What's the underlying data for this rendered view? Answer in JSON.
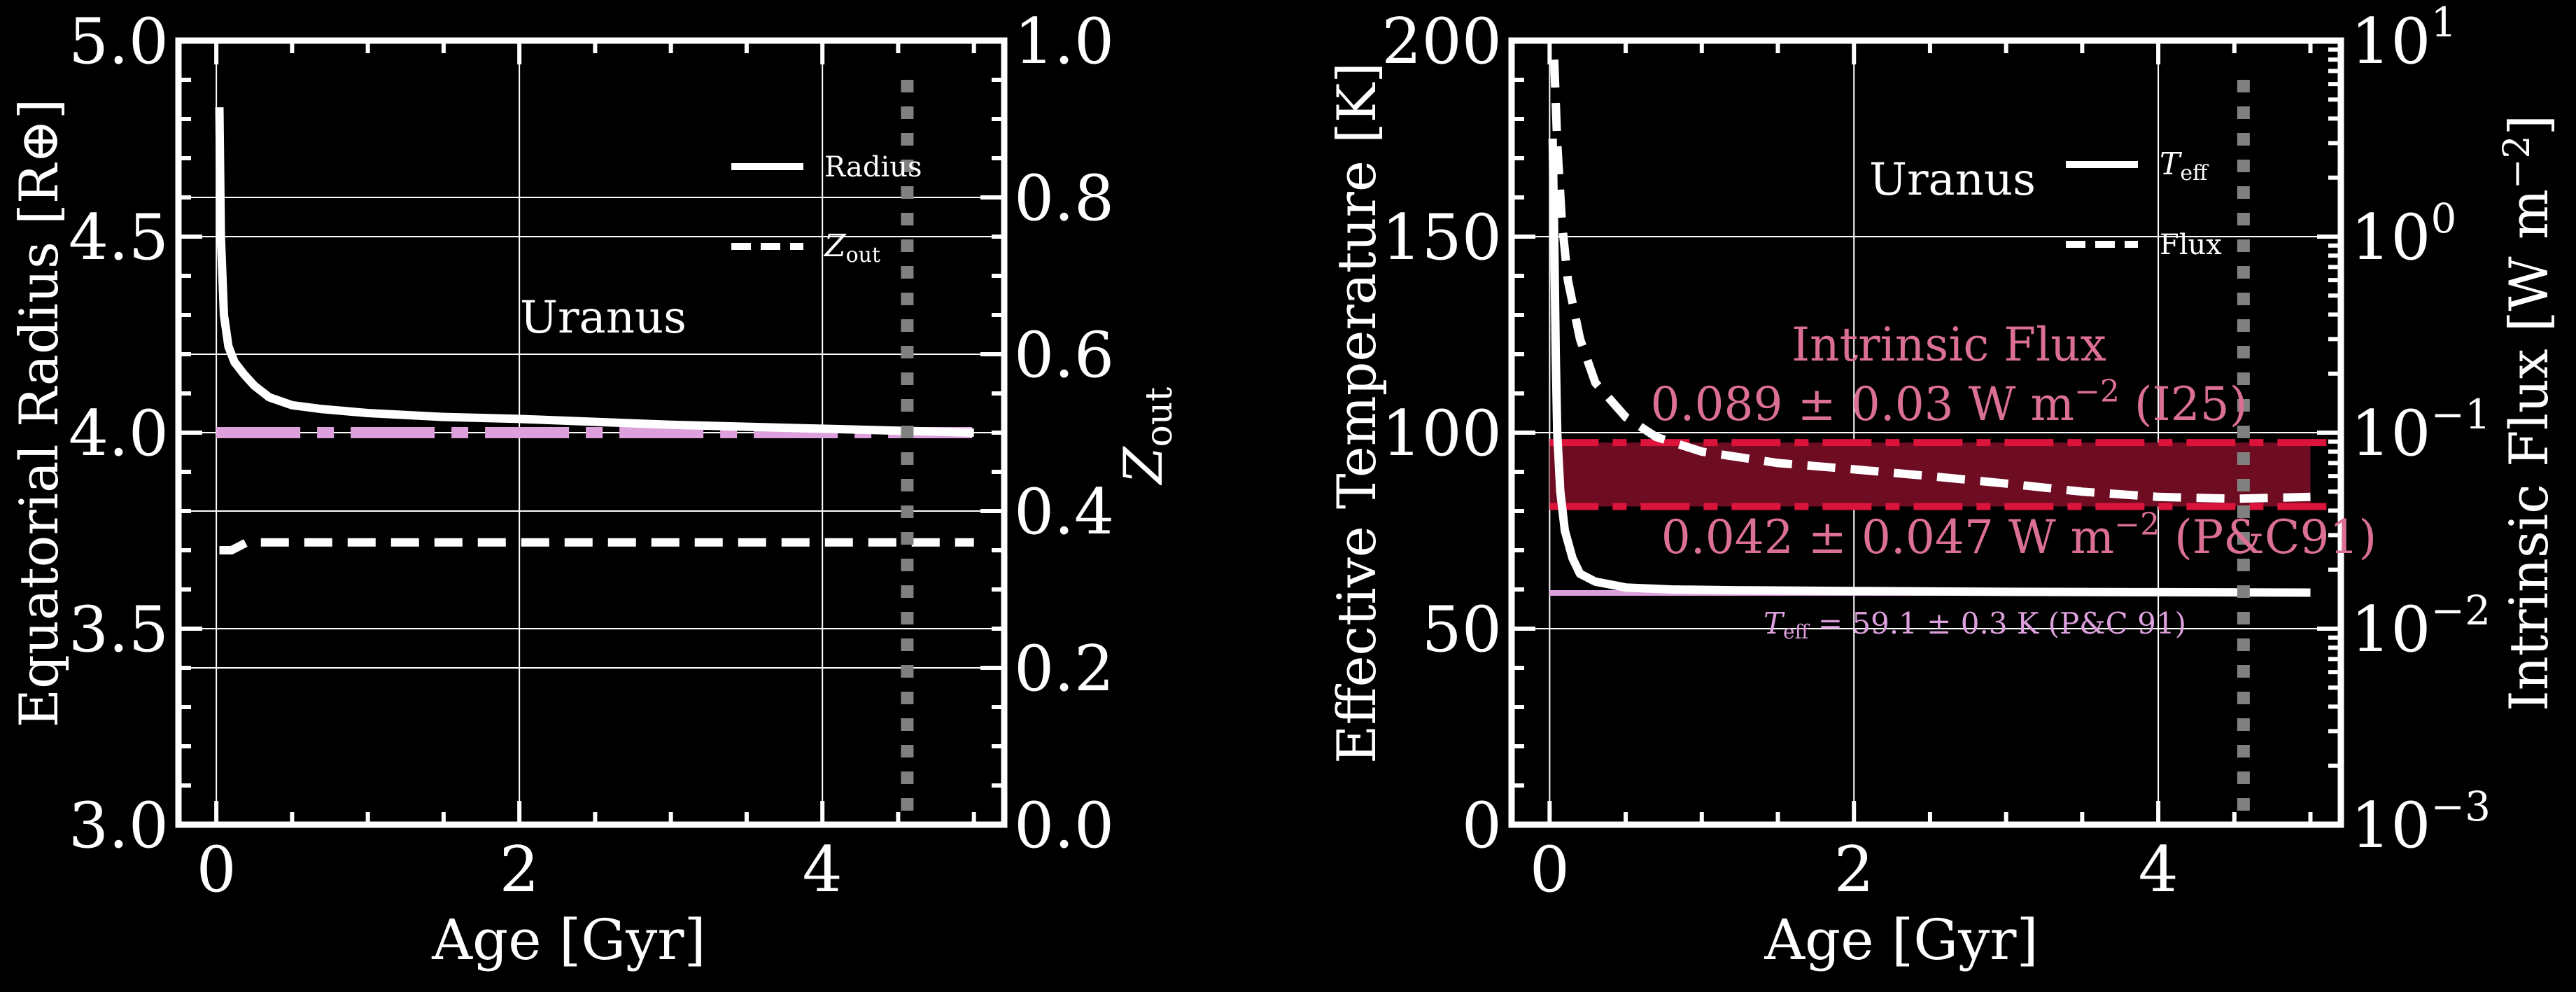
{
  "colors": {
    "background": "#000000",
    "axes": "#ffffff",
    "grid": "#ffffff",
    "observation_line": "#dda0dd",
    "intrinsic_flux_band": "#6e0c22",
    "intrinsic_flux_edges": "#dc143c",
    "intrinsic_flux_text": "#db7093",
    "age_marker": "#808080"
  },
  "chart_data": [
    {
      "type": "line",
      "panel": "left",
      "xlabel": "Age [Gyr]",
      "ylabel": "Equatorial Radius [R⊕]",
      "y2label": "Zout",
      "xlim": [
        -0.25,
        5.2
      ],
      "ylim": [
        3.0,
        5.0
      ],
      "y2lim": [
        0.0,
        1.0
      ],
      "xticks": [
        "0",
        "2",
        "4"
      ],
      "yticks": [
        "3.0",
        "3.5",
        "4.0",
        "4.5",
        "5.0"
      ],
      "y2ticks": [
        "0.0",
        "0.2",
        "0.4",
        "0.6",
        "0.8",
        "1.0"
      ],
      "grid": true,
      "legend_position": "upper-right",
      "annotation": "Uranus",
      "age_marker_x": 4.56,
      "observed_radius": 4.0,
      "series": [
        {
          "name": "Radius",
          "axis": "left",
          "style": "solid",
          "x": [
            0.02,
            0.03,
            0.05,
            0.08,
            0.12,
            0.18,
            0.25,
            0.35,
            0.5,
            0.7,
            1.0,
            1.5,
            2.0,
            3.0,
            4.0,
            5.0
          ],
          "values": [
            4.83,
            4.5,
            4.3,
            4.22,
            4.18,
            4.15,
            4.12,
            4.09,
            4.07,
            4.06,
            4.05,
            4.04,
            4.035,
            4.02,
            4.01,
            4.0
          ]
        },
        {
          "name": "Zout",
          "axis": "right",
          "style": "dashed",
          "x": [
            0.02,
            0.1,
            0.15,
            0.2,
            0.3,
            1.0,
            2.0,
            3.0,
            4.0,
            5.0
          ],
          "values": [
            0.35,
            0.35,
            0.355,
            0.36,
            0.36,
            0.36,
            0.36,
            0.36,
            0.36,
            0.36
          ]
        }
      ]
    },
    {
      "type": "line",
      "panel": "right",
      "xlabel": "Age [Gyr]",
      "ylabel": "Effective Temperature [K]",
      "y2label": "Intrinsic Flux [W m−2]",
      "xlim": [
        -0.25,
        5.2
      ],
      "ylim": [
        0,
        200
      ],
      "y2lim": [
        0.001,
        10
      ],
      "y2scale": "log",
      "xticks": [
        "0",
        "2",
        "4"
      ],
      "yticks": [
        "0",
        "50",
        "100",
        "150",
        "200"
      ],
      "y2ticks": [
        "10−3",
        "10−2",
        "10−1",
        "100",
        "101"
      ],
      "grid": true,
      "legend_position": "upper-right",
      "annotation": "Uranus",
      "age_marker_x": 4.56,
      "flux_band": {
        "title": "Intrinsic Flux",
        "upper_label": "0.089 ± 0.03 W m−2 (I25)",
        "lower_label": "0.042 ± 0.047 W m−2 (P&C91)",
        "upper_flux": 0.089,
        "lower_flux": 0.042,
        "x_range": [
          0.0,
          5.0
        ]
      },
      "teff_obs": {
        "label": "Teff = 59.1 ± 0.3 K (P&C 91)",
        "value": 59.1,
        "x_range": [
          0.0,
          5.0
        ]
      },
      "series": [
        {
          "name": "Teff",
          "axis": "left",
          "style": "solid",
          "x": [
            0.02,
            0.03,
            0.04,
            0.05,
            0.07,
            0.1,
            0.15,
            0.2,
            0.3,
            0.5,
            0.8,
            1.2,
            2.0,
            3.0,
            4.0,
            5.0
          ],
          "values": [
            175,
            150,
            120,
            100,
            85,
            75,
            68,
            64,
            62,
            60.5,
            60,
            59.8,
            59.6,
            59.4,
            59.3,
            59.2
          ]
        },
        {
          "name": "Flux",
          "axis": "right",
          "style": "dashed",
          "x": [
            0.03,
            0.05,
            0.08,
            0.12,
            0.2,
            0.3,
            0.5,
            0.7,
            1.0,
            1.5,
            2.0,
            2.5,
            3.0,
            3.5,
            4.0,
            4.5,
            5.0
          ],
          "values": [
            8,
            3,
            1.2,
            0.6,
            0.3,
            0.18,
            0.12,
            0.095,
            0.08,
            0.07,
            0.065,
            0.06,
            0.055,
            0.05,
            0.047,
            0.046,
            0.047
          ]
        }
      ]
    }
  ],
  "left_panel": {
    "xlabel": "Age [Gyr]",
    "ylabel": "Equatorial Radius [R⊕]",
    "y2label_main": "Z",
    "y2label_sub": "out",
    "annotation": "Uranus",
    "legend": [
      {
        "main": "Radius",
        "sub": ""
      },
      {
        "main": "Z",
        "sub": "out"
      }
    ],
    "xticks": [
      "0",
      "2",
      "4"
    ],
    "yticks": [
      "3.0",
      "3.5",
      "4.0",
      "4.5",
      "5.0"
    ],
    "y2ticks": [
      "0.0",
      "0.2",
      "0.4",
      "0.6",
      "0.8",
      "1.0"
    ]
  },
  "right_panel": {
    "xlabel": "Age [Gyr]",
    "ylabel": "Effective Temperature [K]",
    "y2label": "Intrinsic Flux [W m",
    "y2label_exp": "−2",
    "y2label_tail": "]",
    "annotation": "Uranus",
    "legend": [
      {
        "main": "T",
        "sub": "eff"
      },
      {
        "main": "Flux",
        "sub": ""
      }
    ],
    "xticks": [
      "0",
      "2",
      "4"
    ],
    "yticks": [
      "0",
      "50",
      "100",
      "150",
      "200"
    ],
    "y2ticks_base": "10",
    "y2ticks_exp": [
      "−3",
      "−2",
      "−1",
      "0",
      "1"
    ],
    "flux_title": "Intrinsic Flux",
    "upper_label_a": "0.089 ± 0.03 W m",
    "upper_label_exp": "−2",
    "upper_label_b": " (I25)",
    "lower_label_a": "0.042 ± 0.047 W m",
    "lower_label_exp": "−2",
    "lower_label_b": " (P&C91)",
    "teff_label_main": "T",
    "teff_label_sub": "eff",
    "teff_label_rest": " = 59.1 ± 0.3 K (P&C 91)"
  }
}
